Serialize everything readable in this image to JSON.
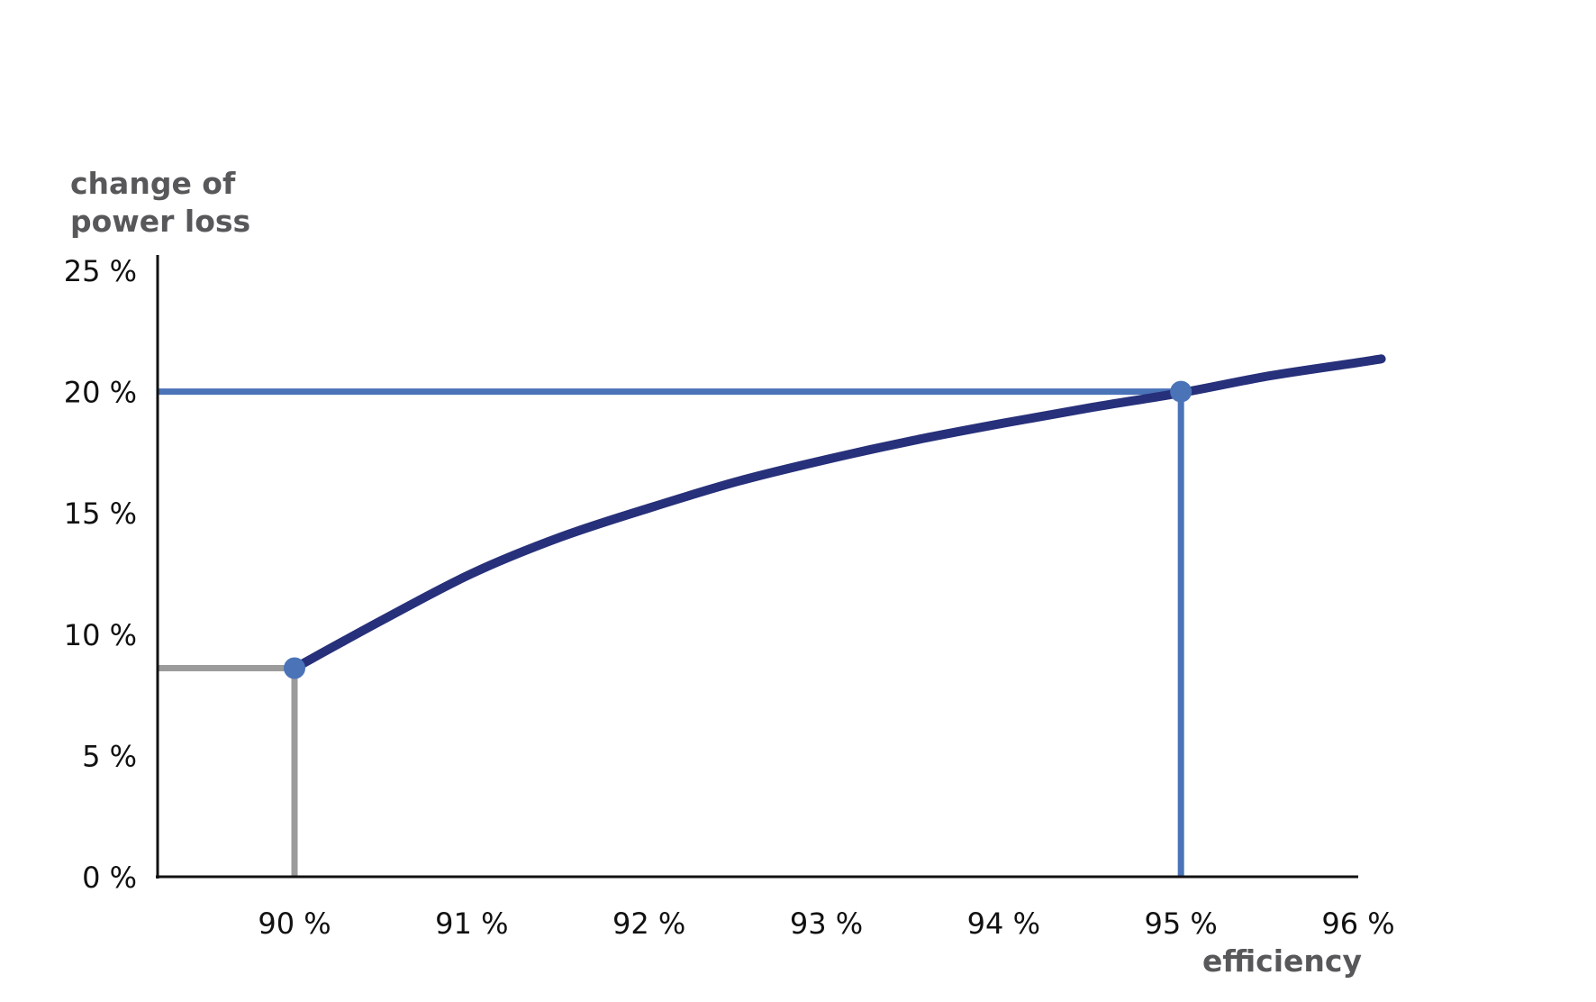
{
  "chart_data": {
    "type": "line",
    "title": "",
    "ylabel_lines": [
      "change of",
      "power loss"
    ],
    "xlabel": "efficiency",
    "xlim": [
      89.2,
      96
    ],
    "ylim": [
      0,
      25
    ],
    "x_ticks": [
      90,
      91,
      92,
      93,
      94,
      95,
      96
    ],
    "x_tick_labels": [
      "90 %",
      "91 %",
      "92 %",
      "93 %",
      "94 %",
      "95 %",
      "96 %"
    ],
    "y_ticks": [
      0,
      5,
      10,
      15,
      20,
      25
    ],
    "y_tick_labels": [
      "0 %",
      "5 %",
      "10 %",
      "15 %",
      "20 %",
      "25 %"
    ],
    "grid": false,
    "series": [
      {
        "color": "#27307a",
        "x": [
          90.0,
          90.5,
          91.0,
          91.5,
          92.0,
          92.5,
          93.0,
          93.5,
          94.0,
          94.5,
          95.0,
          95.5,
          96.0,
          96.13
        ],
        "y": [
          8.6,
          10.6,
          12.5,
          14.0,
          15.2,
          16.3,
          17.2,
          18.0,
          18.7,
          19.35,
          19.95,
          20.65,
          21.2,
          21.35
        ]
      }
    ],
    "highlight_points": [
      {
        "x": 90,
        "y": 8.6,
        "line_color": "#9b9b9b",
        "marker_color": "#4a73b8"
      },
      {
        "x": 95,
        "y": 20,
        "line_color": "#4a73b8",
        "marker_color": "#4a73b8"
      }
    ],
    "axis_color": "#111111"
  }
}
